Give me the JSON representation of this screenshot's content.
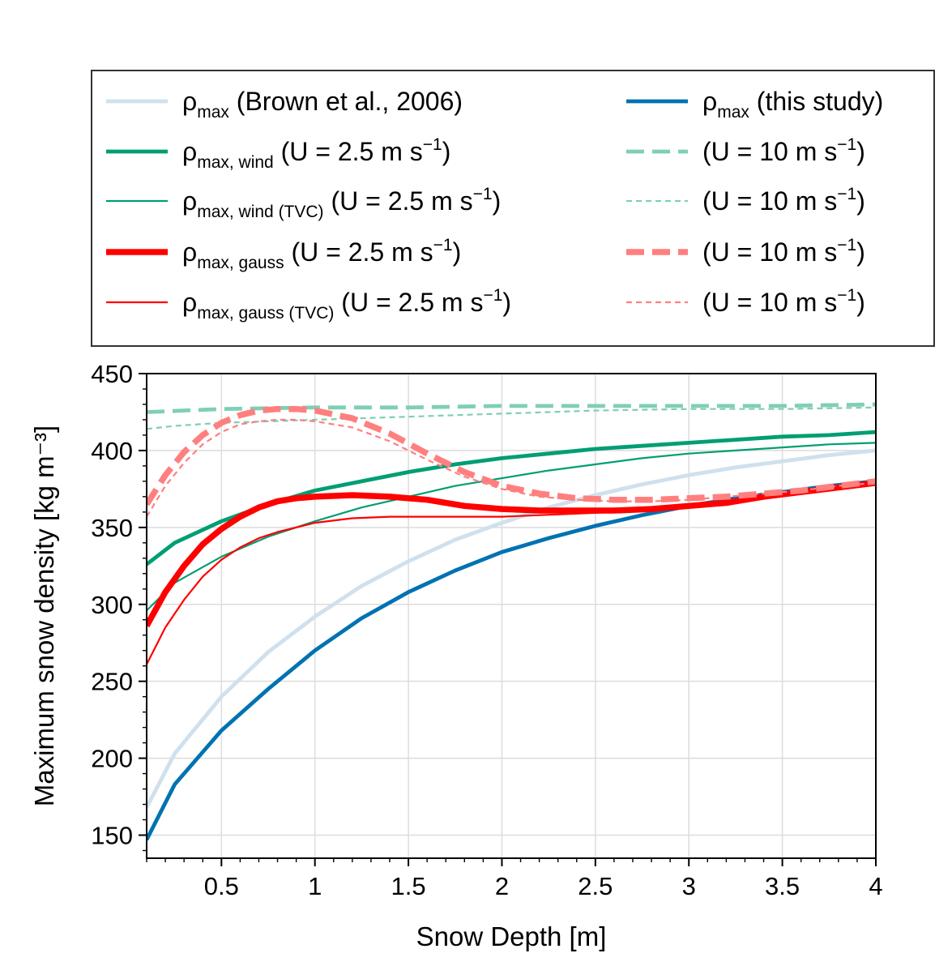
{
  "chart_data": {
    "type": "line",
    "xlabel": "Snow Depth [m]",
    "ylabel": "Maximum snow density [kg m⁻³]",
    "xlim": [
      0.1,
      4.0
    ],
    "ylim": [
      135,
      450
    ],
    "x_ticks": [
      0.5,
      1,
      1.5,
      2,
      2.5,
      3,
      3.5,
      4
    ],
    "x_tick_labels": [
      "0.5",
      "1",
      "1.5",
      "2",
      "2.5",
      "3",
      "3.5",
      "4"
    ],
    "y_ticks": [
      150,
      200,
      250,
      300,
      350,
      400,
      450
    ],
    "y_tick_labels": [
      "150",
      "200",
      "250",
      "300",
      "350",
      "400",
      "450"
    ],
    "grid": true,
    "legend_position": "top, above plot, two columns",
    "series": [
      {
        "id": "brown",
        "legend": {
          "symbol": "ρ",
          "sub": "max",
          "suffix": " (Brown et al., 2006)",
          "sup": ""
        },
        "color": "#cfe0ee",
        "dash": "solid",
        "width": "thick",
        "x": [
          0.1,
          0.25,
          0.5,
          0.75,
          1.0,
          1.25,
          1.5,
          1.75,
          2.0,
          2.25,
          2.5,
          2.75,
          3.0,
          3.25,
          3.5,
          3.75,
          4.0
        ],
        "y": [
          168,
          203,
          240,
          269,
          292,
          312,
          328,
          342,
          353,
          363,
          371,
          378,
          384,
          389,
          393,
          397,
          400
        ]
      },
      {
        "id": "this_study",
        "legend": {
          "symbol": "ρ",
          "sub": "max",
          "suffix": " (this study)",
          "sup": ""
        },
        "color": "#0072b2",
        "dash": "solid",
        "width": "thick",
        "x": [
          0.1,
          0.25,
          0.5,
          0.75,
          1.0,
          1.25,
          1.5,
          1.75,
          2.0,
          2.25,
          2.5,
          2.75,
          3.0,
          3.25,
          3.5,
          3.75,
          4.0
        ],
        "y": [
          147,
          183,
          218,
          245,
          270,
          291,
          308,
          322,
          334,
          343,
          351,
          358,
          364,
          369,
          373,
          377,
          380
        ]
      },
      {
        "id": "wind_25",
        "legend": {
          "symbol": "ρ",
          "sub": "max, wind",
          "suffix": " (U = 2.5 m s",
          "sup": "−1"
        },
        "color": "#009e73",
        "dash": "solid",
        "width": "thick",
        "x": [
          0.1,
          0.25,
          0.5,
          0.75,
          1.0,
          1.25,
          1.5,
          1.75,
          2.0,
          2.25,
          2.5,
          2.75,
          3.0,
          3.25,
          3.5,
          3.75,
          4.0
        ],
        "y": [
          326,
          340,
          354,
          365,
          374,
          380,
          386,
          391,
          395,
          398,
          401,
          403,
          405,
          407,
          409,
          410,
          412
        ]
      },
      {
        "id": "wind_25_tvc",
        "legend": {
          "symbol": "ρ",
          "sub": "max, wind (TVC)",
          "suffix": " (U = 2.5 m s",
          "sup": "−1"
        },
        "color": "#009e73",
        "dash": "solid",
        "width": "thin",
        "x": [
          0.1,
          0.25,
          0.5,
          0.75,
          1.0,
          1.25,
          1.5,
          1.75,
          2.0,
          2.25,
          2.5,
          2.75,
          3.0,
          3.25,
          3.5,
          3.75,
          4.0
        ],
        "y": [
          296,
          314,
          331,
          344,
          354,
          363,
          370,
          377,
          382,
          387,
          391,
          395,
          398,
          400,
          402,
          404,
          405
        ]
      },
      {
        "id": "gauss_25",
        "legend": {
          "symbol": "ρ",
          "sub": "max, gauss",
          "suffix": " (U = 2.5 m s",
          "sup": "−1"
        },
        "color": "#ff0000",
        "dash": "solid",
        "width": "extra-thick",
        "x": [
          0.1,
          0.2,
          0.3,
          0.4,
          0.5,
          0.6,
          0.7,
          0.8,
          0.9,
          1.0,
          1.2,
          1.4,
          1.6,
          1.8,
          2.0,
          2.2,
          2.4,
          2.6,
          2.8,
          3.0,
          3.2,
          3.4,
          3.6,
          3.8,
          4.0
        ],
        "y": [
          286,
          308,
          325,
          339,
          349,
          357,
          363,
          367,
          369,
          370,
          371,
          370,
          368,
          364,
          362,
          361,
          361,
          361,
          362,
          364,
          366,
          370,
          373,
          376,
          379
        ]
      },
      {
        "id": "gauss_25_tvc",
        "legend": {
          "symbol": "ρ",
          "sub": "max, gauss (TVC)",
          "suffix": " (U = 2.5 m s",
          "sup": "−1"
        },
        "color": "#ff0000",
        "dash": "solid",
        "width": "thin",
        "x": [
          0.1,
          0.2,
          0.3,
          0.4,
          0.5,
          0.6,
          0.7,
          0.8,
          0.9,
          1.0,
          1.2,
          1.4,
          1.6,
          1.8,
          2.0,
          2.2,
          2.4,
          2.6,
          2.8,
          3.0,
          3.2,
          3.4,
          3.6,
          3.8,
          4.0
        ],
        "y": [
          261,
          285,
          303,
          318,
          329,
          337,
          343,
          347,
          350,
          353,
          356,
          357,
          357,
          357,
          357,
          358,
          359,
          360,
          362,
          364,
          366,
          369,
          372,
          375,
          378
        ]
      },
      {
        "id": "wind_10",
        "legend": {
          "symbol": "",
          "sub": "",
          "suffix": "(U = 10 m s",
          "sup": "−1"
        },
        "color": "#7fcfb4",
        "dash": "dashed",
        "width": "thick",
        "x": [
          0.1,
          0.5,
          1.0,
          1.5,
          2.0,
          2.5,
          3.0,
          3.5,
          4.0
        ],
        "y": [
          425,
          427,
          428,
          428,
          429,
          429,
          429,
          429,
          430
        ]
      },
      {
        "id": "wind_10_tvc",
        "legend": {
          "symbol": "",
          "sub": "",
          "suffix": "(U = 10 m s",
          "sup": "−1"
        },
        "color": "#7fcfb4",
        "dash": "dashed",
        "width": "thin",
        "x": [
          0.1,
          0.25,
          0.5,
          0.75,
          1.0,
          1.5,
          2.0,
          2.5,
          3.0,
          3.5,
          4.0
        ],
        "y": [
          414,
          416,
          418,
          419,
          420,
          422,
          424,
          426,
          427,
          427,
          428
        ]
      },
      {
        "id": "gauss_10",
        "legend": {
          "symbol": "",
          "sub": "",
          "suffix": "(U = 10 m s",
          "sup": "−1"
        },
        "color": "#ff7f7f",
        "dash": "dashed",
        "width": "extra-thick",
        "x": [
          0.1,
          0.2,
          0.3,
          0.4,
          0.5,
          0.6,
          0.7,
          0.8,
          0.9,
          1.0,
          1.2,
          1.4,
          1.6,
          1.8,
          2.0,
          2.2,
          2.4,
          2.6,
          2.8,
          3.0,
          3.2,
          3.4,
          3.6,
          3.8,
          4.0
        ],
        "y": [
          365,
          384,
          399,
          410,
          418,
          423,
          426,
          427,
          427,
          426,
          421,
          411,
          398,
          386,
          377,
          372,
          369,
          368,
          368,
          369,
          370,
          372,
          374,
          377,
          380
        ]
      },
      {
        "id": "gauss_10_tvc",
        "legend": {
          "symbol": "",
          "sub": "",
          "suffix": "(U = 10 m s",
          "sup": "−1"
        },
        "color": "#ff7f7f",
        "dash": "dashed",
        "width": "thin",
        "x": [
          0.1,
          0.2,
          0.3,
          0.4,
          0.5,
          0.6,
          0.7,
          0.8,
          0.9,
          1.0,
          1.2,
          1.4,
          1.6,
          1.8,
          2.0,
          2.2,
          2.4,
          2.6,
          2.8,
          3.0,
          3.2,
          3.4,
          3.6,
          3.8,
          4.0
        ],
        "y": [
          357,
          377,
          392,
          404,
          412,
          417,
          419,
          420,
          420,
          419,
          415,
          406,
          394,
          383,
          375,
          370,
          368,
          367,
          367,
          368,
          370,
          372,
          374,
          377,
          379
        ]
      }
    ]
  }
}
